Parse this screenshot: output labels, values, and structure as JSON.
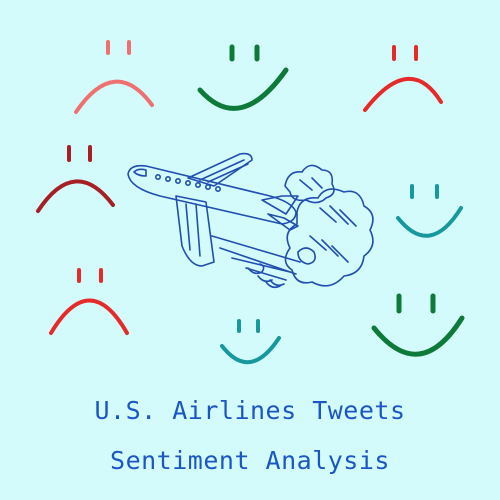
{
  "colors": {
    "background": "#d4fbfb",
    "title_text": "#1a56c4",
    "plane_ink": "#1f4fb0",
    "sad_salmon": "#f07070",
    "sad_red": "#e62a2a",
    "sad_dark_red": "#a51f24",
    "happy_green": "#0e7a3a",
    "happy_teal": "#16989c"
  },
  "faces": [
    {
      "name": "sad-face-salmon",
      "mood": "sad",
      "color": "sad_salmon"
    },
    {
      "name": "happy-face-green",
      "mood": "happy",
      "color": "happy_green"
    },
    {
      "name": "sad-face-red",
      "mood": "sad",
      "color": "sad_red"
    },
    {
      "name": "sad-face-dark-red",
      "mood": "sad",
      "color": "sad_dark_red"
    },
    {
      "name": "happy-face-teal",
      "mood": "happy",
      "color": "happy_teal"
    },
    {
      "name": "sad-face-red-lower",
      "mood": "sad",
      "color": "sad_red"
    },
    {
      "name": "happy-face-teal-small",
      "mood": "happy",
      "color": "happy_teal"
    },
    {
      "name": "happy-face-green-large",
      "mood": "happy",
      "color": "happy_green"
    }
  ],
  "illustration": {
    "icon": "airplane-icon",
    "trail_icon": "smoke-cloud-icon"
  },
  "title": {
    "line1": "U.S. Airlines Tweets",
    "line2": "Sentiment Analysis"
  }
}
